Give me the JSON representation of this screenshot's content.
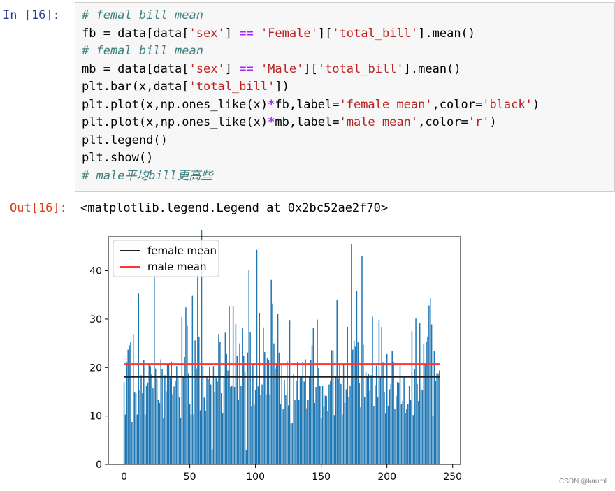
{
  "cell": {
    "in_prompt": "In  [16]:",
    "out_prompt": "Out[16]:",
    "output_text": "<matplotlib.legend.Legend at 0x2bc52ae2f70>",
    "code_lines": [
      [
        {
          "t": "# femal bill mean",
          "c": "comment"
        }
      ],
      [
        {
          "t": "fb = data[data[",
          "c": "plain"
        },
        {
          "t": "'sex'",
          "c": "str"
        },
        {
          "t": "] ",
          "c": "plain"
        },
        {
          "t": "==",
          "c": "op"
        },
        {
          "t": " ",
          "c": "plain"
        },
        {
          "t": "'Female'",
          "c": "str"
        },
        {
          "t": "][",
          "c": "plain"
        },
        {
          "t": "'total_bill'",
          "c": "str"
        },
        {
          "t": "].mean()",
          "c": "plain"
        }
      ],
      [
        {
          "t": "# femal bill mean",
          "c": "comment"
        }
      ],
      [
        {
          "t": "mb = data[data[",
          "c": "plain"
        },
        {
          "t": "'sex'",
          "c": "str"
        },
        {
          "t": "] ",
          "c": "plain"
        },
        {
          "t": "==",
          "c": "op"
        },
        {
          "t": " ",
          "c": "plain"
        },
        {
          "t": "'Male'",
          "c": "str"
        },
        {
          "t": "][",
          "c": "plain"
        },
        {
          "t": "'total_bill'",
          "c": "str"
        },
        {
          "t": "].mean()",
          "c": "plain"
        }
      ],
      [
        {
          "t": "plt.bar(x,data[",
          "c": "plain"
        },
        {
          "t": "'total_bill'",
          "c": "str"
        },
        {
          "t": "])",
          "c": "plain"
        }
      ],
      [
        {
          "t": "plt.plot(x,np.ones_like(x)",
          "c": "plain"
        },
        {
          "t": "*",
          "c": "op"
        },
        {
          "t": "fb,label=",
          "c": "plain"
        },
        {
          "t": "'female mean'",
          "c": "str"
        },
        {
          "t": ",color=",
          "c": "plain"
        },
        {
          "t": "'black'",
          "c": "str"
        },
        {
          "t": ")",
          "c": "plain"
        }
      ],
      [
        {
          "t": "plt.plot(x,np.ones_like(x)",
          "c": "plain"
        },
        {
          "t": "*",
          "c": "op"
        },
        {
          "t": "mb,label=",
          "c": "plain"
        },
        {
          "t": "'male mean'",
          "c": "str"
        },
        {
          "t": ",color=",
          "c": "plain"
        },
        {
          "t": "'r'",
          "c": "str"
        },
        {
          "t": ")",
          "c": "plain"
        }
      ],
      [
        {
          "t": "plt.legend()",
          "c": "plain"
        }
      ],
      [
        {
          "t": "plt.show()",
          "c": "plain"
        }
      ],
      [
        {
          "t": "# male平均bill更高些",
          "c": "comment"
        }
      ]
    ]
  },
  "watermark": "CSDN @kauml",
  "colors": {
    "bar": "#1f77b4",
    "female_line": "#222222",
    "male_line": "#ff3333"
  },
  "chart_data": {
    "type": "bar",
    "x": "0..243",
    "ylim": [
      0,
      47
    ],
    "xlim": [
      -12,
      256
    ],
    "xticks": [
      0,
      50,
      100,
      150,
      200,
      250
    ],
    "yticks": [
      0,
      10,
      20,
      30,
      40
    ],
    "grid": false,
    "legend_position": "top-left",
    "series": [
      {
        "name": "female mean",
        "type": "line",
        "color": "black",
        "value": 18.06
      },
      {
        "name": "male mean",
        "type": "line",
        "color": "r",
        "value": 20.74
      }
    ],
    "values": [
      17,
      10.3,
      21,
      23.7,
      24.6,
      25.3,
      8.8,
      26.9,
      15,
      14.8,
      10.3,
      35.3,
      15.4,
      18.4,
      14.8,
      21.6,
      10.3,
      16.3,
      16.9,
      20.7,
      20.3,
      18.7,
      15.7,
      39.4,
      19.8,
      17.8,
      13.4,
      12.7,
      21.7,
      19.7,
      9.6,
      18.4,
      15.1,
      20.7,
      20.9,
      17.9,
      21.2,
      14.5,
      16.1,
      17.2,
      20.3,
      17.8,
      13.9,
      9.6,
      30.4,
      18.3,
      22.2,
      32.4,
      28.6,
      18.8,
      12.5,
      10.3,
      34.8,
      10.3,
      25.6,
      19.8,
      39.4,
      26.4,
      11.2,
      48.3,
      20.3,
      13.8,
      11,
      18.3,
      17.6,
      20.1,
      16.5,
      3.1,
      20.3,
      15,
      17.9,
      17.1,
      26.9,
      25.3,
      14.7,
      10.5,
      17.9,
      27.2,
      22.8,
      19.4,
      32.7,
      16,
      16.3,
      32.7,
      16,
      29,
      22.4,
      13.4,
      25,
      16.3,
      28.1,
      22.5,
      19,
      3,
      23.1,
      40.2,
      27.3,
      12,
      20.6,
      12.3,
      15.4,
      44.3,
      16.1,
      31.3,
      14.3,
      16.5,
      28.3,
      23.2,
      14.3,
      22,
      21.5,
      14.5,
      38.1,
      33.2,
      25,
      19.8,
      20.5,
      31,
      23.1,
      12.5,
      20.5,
      11.4,
      17.5,
      14.3,
      21.3,
      12.2,
      29.8,
      8.5,
      8.5,
      18.7,
      13.4,
      17.3,
      21.2,
      13.4,
      17.9,
      18.2,
      21.2,
      17.1,
      21.7,
      11.6,
      13.4,
      18.3,
      21.5,
      24.6,
      28.2,
      12.7,
      16,
      29.9,
      19.9,
      16.3,
      9.6,
      16.3,
      11.9,
      14.2,
      14.1,
      11,
      16.5,
      17.3,
      23.6,
      23.5,
      10.2,
      18.2,
      34,
      17.8,
      20.7,
      16.6,
      10.3,
      20.8,
      12.7,
      15.5,
      28.4,
      13.9,
      16.2,
      45.4,
      23.7,
      25.6,
      24.3,
      35.8,
      25.2,
      16.8,
      11.8,
      43,
      24.7,
      13.9,
      19.1,
      18.3,
      18.6,
      15.2,
      18.4,
      30.5,
      12.1,
      16.4,
      20.4,
      14,
      29.9,
      17.9,
      28.4,
      21,
      15,
      10.5,
      22.8,
      12,
      15.5,
      16.6,
      23.5,
      21.2,
      11.5,
      14.1,
      17,
      16.9,
      20.4,
      12.4,
      13.1,
      17.9,
      10.6,
      11.4,
      12.5,
      16.2,
      13.4,
      27.5,
      10.2,
      19.6,
      30.1,
      16.6,
      13.1,
      29.2,
      15.5,
      15.3,
      24.9,
      20.5,
      25.3,
      26.4,
      32.8,
      34.3,
      28.9,
      10.1,
      23.4,
      17.2,
      18.8,
      18.8,
      19.4
    ]
  }
}
